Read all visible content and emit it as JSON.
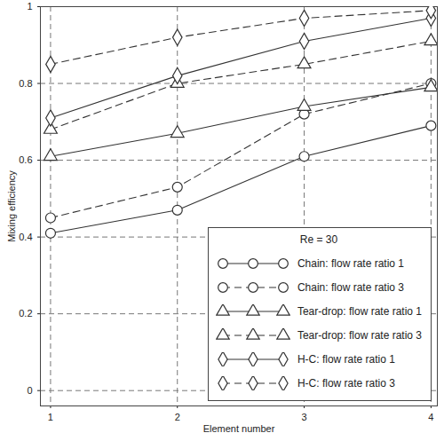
{
  "chart_data": {
    "type": "line",
    "x_label": "Element number",
    "y_label": "Mixing efficiency",
    "legend_title": "Re = 30",
    "x": [
      1,
      2,
      3,
      4
    ],
    "xlim": [
      0.92,
      4.05
    ],
    "xticks": [
      1,
      2,
      3,
      4
    ],
    "ylim": [
      -0.04,
      1
    ],
    "yticks": [
      0,
      0.2,
      0.4,
      0.6,
      0.8,
      1
    ],
    "grid": true,
    "legend": "bottom-right",
    "series": [
      {
        "name": "Chain: flow rate ratio 1",
        "color": "#333333",
        "marker": "circle",
        "line_style": "solid",
        "values": [
          0.41,
          0.47,
          0.61,
          0.69
        ]
      },
      {
        "name": "Chain: flow rate ratio 3",
        "color": "#333333",
        "marker": "circle",
        "line_style": "dashed",
        "values": [
          0.45,
          0.53,
          0.72,
          0.8
        ]
      },
      {
        "name": "Tear-drop: flow rate ratio 1",
        "color": "#333333",
        "marker": "triangle",
        "line_style": "solid",
        "values": [
          0.61,
          0.67,
          0.74,
          0.79
        ]
      },
      {
        "name": "Tear-drop: flow rate ratio 3",
        "color": "#333333",
        "marker": "triangle",
        "line_style": "dashed",
        "values": [
          0.68,
          0.8,
          0.85,
          0.91
        ]
      },
      {
        "name": "H-C: flow rate ratio 1",
        "color": "#333333",
        "marker": "diamond",
        "line_style": "solid",
        "values": [
          0.71,
          0.82,
          0.91,
          0.97
        ]
      },
      {
        "name": "H-C: flow rate ratio 3",
        "color": "#333333",
        "marker": "diamond",
        "line_style": "dashed",
        "values": [
          0.85,
          0.92,
          0.97,
          0.99
        ]
      }
    ]
  }
}
